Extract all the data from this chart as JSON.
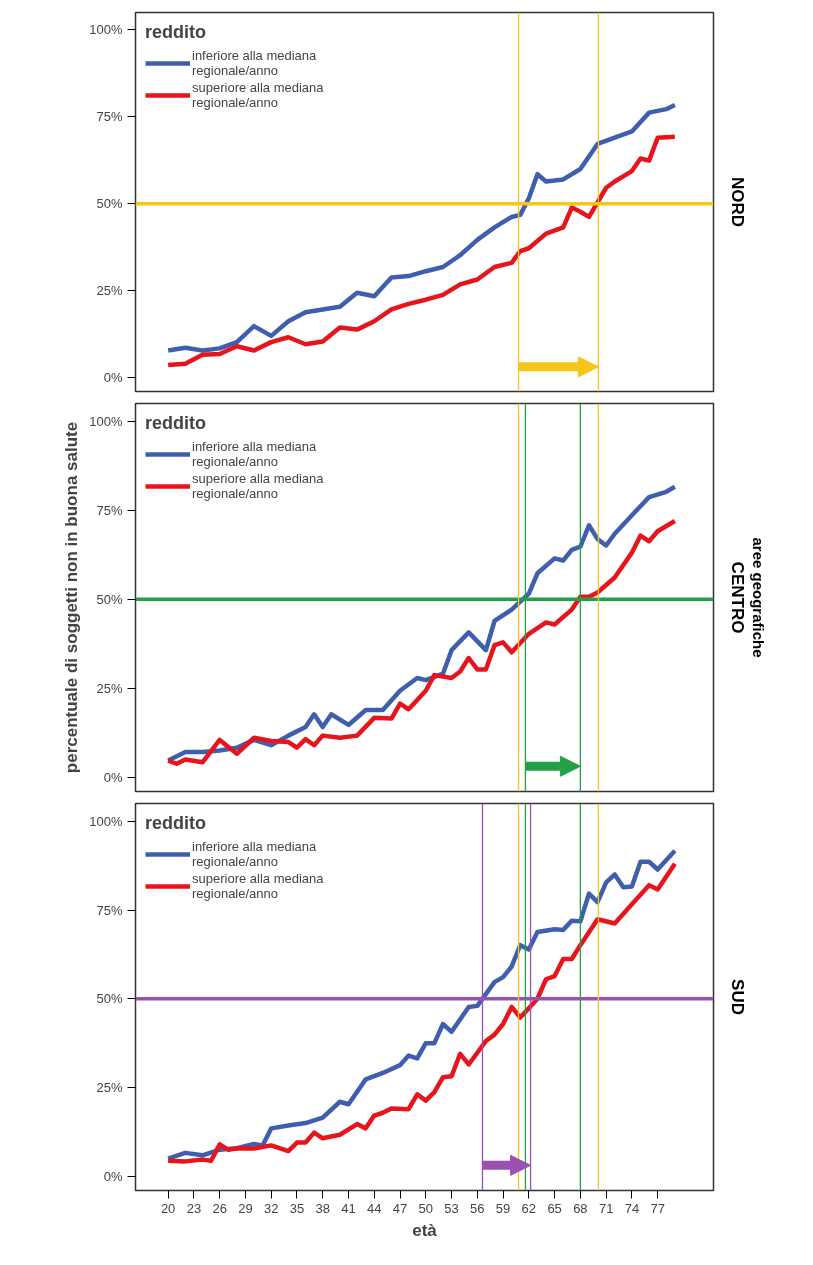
{
  "chart_data": [
    {
      "type": "line",
      "annotations": [
        "NORD"
      ],
      "legend_title": "reddito",
      "legend": "top left",
      "grid": false,
      "marker": "none",
      "line_style": "solid",
      "tick_labels": "y",
      "xlim": [
        16.2,
        83.5
      ],
      "xticks": [
        20,
        23,
        26,
        29,
        32,
        35,
        38,
        41,
        44,
        47,
        50,
        53,
        56,
        59,
        62,
        65,
        68,
        71,
        74,
        77
      ],
      "ylim": [
        -4,
        105
      ],
      "yticks": [
        {
          "value": 0,
          "label": "0%"
        },
        {
          "value": 25,
          "label": "25%"
        },
        {
          "value": 50,
          "label": "50%"
        },
        {
          "value": 75,
          "label": "75%"
        },
        {
          "value": 100,
          "label": "100%"
        }
      ],
      "series": [
        {
          "name": "inferiore alla mediana\nregionale/anno",
          "color": "#3f5fae",
          "x": [
            20,
            22,
            24,
            26,
            28,
            30,
            32,
            34,
            36,
            38,
            40,
            42,
            44,
            46,
            48,
            50,
            52,
            54,
            56,
            58,
            60,
            61,
            62,
            63,
            64,
            66,
            68,
            70,
            72,
            74,
            76,
            78,
            79
          ],
          "values": [
            7.8,
            8.6,
            7.8,
            8.4,
            10.2,
            14.8,
            12.0,
            16.2,
            18.8,
            19.6,
            20.4,
            24.4,
            23.4,
            28.8,
            29.2,
            30.6,
            31.8,
            35.2,
            39.6,
            43.2,
            46.2,
            46.8,
            51.6,
            58.5,
            56.4,
            57.0,
            60.0,
            67.2,
            69.0,
            70.8,
            76.2,
            77.2,
            78.4
          ]
        },
        {
          "name": "superiore alla mediana\nregionale/anno",
          "color": "#e8141c",
          "x": [
            20,
            22,
            24,
            26,
            28,
            30,
            32,
            34,
            36,
            38,
            40,
            42,
            44,
            46,
            48,
            50,
            52,
            54,
            56,
            58,
            60,
            61,
            62,
            64,
            66,
            67,
            68,
            69,
            70,
            71,
            72,
            74,
            75,
            76,
            77,
            79
          ],
          "values": [
            3.6,
            4.0,
            6.6,
            6.8,
            9.0,
            7.8,
            10.2,
            11.6,
            9.6,
            10.4,
            14.4,
            13.8,
            16.2,
            19.6,
            21.2,
            22.4,
            23.8,
            26.8,
            28.2,
            31.8,
            33.0,
            36.4,
            37.2,
            41.4,
            43.2,
            48.9,
            47.7,
            46.2,
            50.4,
            54.6,
            56.4,
            59.4,
            63.0,
            62.4,
            69.0,
            69.3
          ]
        }
      ],
      "ref_lines": [
        {
          "axis": "y",
          "value": 50,
          "color": "#f5c518",
          "line_style": "solid"
        },
        {
          "axis": "x",
          "value": 60.8,
          "color": "#f5c518",
          "line_style": "solid"
        },
        {
          "axis": "x",
          "value": 70.1,
          "color": "#f5c518",
          "line_style": "solid"
        }
      ]
    },
    {
      "type": "line",
      "ylabel": "percentuale di soggetti non in buona salute",
      "annotations": [
        "CENTRO",
        "aree geografiche"
      ],
      "legend_title": "reddito",
      "legend": "top left",
      "grid": false,
      "marker": "none",
      "line_style": "solid",
      "tick_labels": "y",
      "xlim": [
        16.2,
        83.5
      ],
      "xticks": [
        20,
        23,
        26,
        29,
        32,
        35,
        38,
        41,
        44,
        47,
        50,
        53,
        56,
        59,
        62,
        65,
        68,
        71,
        74,
        77
      ],
      "ylim": [
        -4,
        105
      ],
      "yticks": [
        {
          "value": 0,
          "label": "0%"
        },
        {
          "value": 25,
          "label": "25%"
        },
        {
          "value": 50,
          "label": "50%"
        },
        {
          "value": 75,
          "label": "75%"
        },
        {
          "value": 100,
          "label": "100%"
        }
      ],
      "series": [
        {
          "name": "inferiore alla mediana\nregionale/anno",
          "color": "#3f5fae",
          "x": [
            20,
            22,
            24,
            26,
            28,
            30,
            32,
            34,
            36,
            37,
            38,
            39,
            41,
            43,
            45,
            47,
            49,
            50,
            52,
            53,
            55,
            57,
            58,
            60,
            62,
            63,
            65,
            66,
            67,
            68,
            69,
            70,
            71,
            72,
            74,
            76,
            78,
            79
          ],
          "values": [
            4.7,
            7.1,
            7.1,
            7.5,
            8.3,
            10.5,
            9.0,
            11.7,
            14.1,
            17.7,
            14.1,
            17.7,
            14.7,
            18.9,
            18.9,
            24.3,
            27.9,
            27.3,
            29.1,
            35.7,
            40.7,
            35.7,
            43.9,
            47.1,
            51.6,
            57.3,
            61.5,
            60.9,
            63.9,
            64.8,
            70.8,
            66.9,
            65.1,
            68.4,
            73.6,
            78.7,
            80.2,
            81.6
          ]
        },
        {
          "name": "superiore alla mediana\nregionale/anno",
          "color": "#e8141c",
          "x": [
            20,
            21,
            22,
            24,
            26,
            28,
            30,
            32,
            34,
            35,
            36,
            37,
            38,
            40,
            42,
            44,
            46,
            47,
            48,
            50,
            51,
            53,
            54,
            55,
            56,
            57,
            58,
            59,
            60,
            62,
            64,
            65,
            67,
            68,
            69,
            70,
            72,
            74,
            75,
            76,
            77,
            79
          ],
          "values": [
            4.7,
            3.8,
            5.0,
            4.2,
            10.5,
            6.6,
            11.1,
            10.2,
            9.9,
            8.3,
            10.7,
            9.0,
            11.7,
            11.1,
            11.7,
            16.7,
            16.5,
            20.7,
            19.1,
            24.3,
            28.7,
            27.9,
            29.7,
            33.5,
            30.3,
            30.3,
            37.1,
            37.9,
            35.1,
            40.3,
            43.5,
            42.9,
            47.1,
            50.7,
            50.7,
            51.9,
            56.1,
            63.1,
            67.9,
            66.3,
            69.1,
            72.0
          ]
        }
      ],
      "ref_lines": [
        {
          "axis": "y",
          "value": 50,
          "color": "#22a046",
          "line_style": "solid"
        },
        {
          "axis": "x",
          "value": 60.8,
          "color": "#f5c518",
          "line_style": "solid"
        },
        {
          "axis": "x",
          "value": 70.1,
          "color": "#f5c518",
          "line_style": "solid"
        },
        {
          "axis": "x",
          "value": 61.6,
          "color": "#22a046",
          "line_style": "solid"
        },
        {
          "axis": "x",
          "value": 68.0,
          "color": "#22a046",
          "line_style": "solid"
        }
      ]
    },
    {
      "type": "line",
      "annotations": [
        "SUD"
      ],
      "xlabel": "età",
      "legend_title": "reddito",
      "legend": "top left",
      "grid": false,
      "marker": "none",
      "line_style": "solid",
      "xlim": [
        16.2,
        83.5
      ],
      "xticks": [
        20,
        23,
        26,
        29,
        32,
        35,
        38,
        41,
        44,
        47,
        50,
        53,
        56,
        59,
        62,
        65,
        68,
        71,
        74,
        77
      ],
      "ylim": [
        -4,
        105
      ],
      "yticks": [
        {
          "value": 0,
          "label": "0%"
        },
        {
          "value": 25,
          "label": "25%"
        },
        {
          "value": 50,
          "label": "50%"
        },
        {
          "value": 75,
          "label": "75%"
        },
        {
          "value": 100,
          "label": "100%"
        }
      ],
      "series": [
        {
          "name": "inferiore alla mediana\nregionale/anno",
          "color": "#3f5fae",
          "x": [
            20,
            22,
            24,
            26,
            28,
            30,
            31,
            32,
            34,
            36,
            38,
            40,
            41,
            43,
            45,
            47,
            48,
            49,
            50,
            51,
            52,
            53,
            55,
            56,
            58,
            59,
            60,
            61,
            62,
            63,
            65,
            66,
            67,
            68,
            69,
            70,
            71,
            72,
            73,
            74,
            75,
            76,
            77,
            79
          ],
          "values": [
            5.0,
            6.6,
            5.9,
            7.5,
            7.9,
            9.1,
            8.7,
            13.5,
            14.3,
            15.0,
            16.5,
            21.0,
            20.3,
            27.3,
            29.1,
            31.3,
            34.0,
            33.2,
            37.5,
            37.5,
            42.9,
            40.7,
            47.7,
            48.0,
            54.7,
            56.1,
            59.1,
            65.1,
            63.9,
            68.8,
            69.6,
            69.4,
            72.0,
            71.8,
            79.6,
            77.2,
            82.8,
            85.0,
            81.4,
            81.6,
            88.6,
            88.6,
            86.4,
            91.7
          ]
        },
        {
          "name": "superiore alla mediana\nregionale/anno",
          "color": "#e8141c",
          "x": [
            20,
            22,
            24,
            25,
            26,
            27,
            28,
            30,
            32,
            34,
            35,
            36,
            37,
            38,
            40,
            42,
            43,
            44,
            45,
            46,
            48,
            49,
            50,
            51,
            52,
            53,
            54,
            55,
            57,
            58,
            59,
            60,
            61,
            63,
            64,
            65,
            66,
            67,
            68,
            70,
            72,
            74,
            76,
            77,
            79
          ],
          "values": [
            4.4,
            4.2,
            4.7,
            4.4,
            9.0,
            7.5,
            7.9,
            7.8,
            8.7,
            7.1,
            9.5,
            9.5,
            12.3,
            10.7,
            11.7,
            14.7,
            13.5,
            17.1,
            17.9,
            19.1,
            18.9,
            23.1,
            21.3,
            23.7,
            27.9,
            28.2,
            34.5,
            31.5,
            38.1,
            39.9,
            42.9,
            47.7,
            44.7,
            50.0,
            55.5,
            56.4,
            61.2,
            61.2,
            65.1,
            72.4,
            71.2,
            76.6,
            82.0,
            80.8,
            88.0
          ]
        }
      ],
      "ref_lines": [
        {
          "axis": "y",
          "value": 50,
          "color": "#9b4fb0",
          "line_style": "solid"
        },
        {
          "axis": "x",
          "value": 60.8,
          "color": "#f5c518",
          "line_style": "solid"
        },
        {
          "axis": "x",
          "value": 70.1,
          "color": "#f5c518",
          "line_style": "solid"
        },
        {
          "axis": "x",
          "value": 61.6,
          "color": "#22a046",
          "line_style": "solid"
        },
        {
          "axis": "x",
          "value": 68.0,
          "color": "#22a046",
          "line_style": "solid"
        },
        {
          "axis": "x",
          "value": 56.6,
          "color": "#9b4fb0",
          "line_style": "solid"
        },
        {
          "axis": "x",
          "value": 62.2,
          "color": "#9b4fb0",
          "line_style": "solid"
        }
      ]
    }
  ]
}
